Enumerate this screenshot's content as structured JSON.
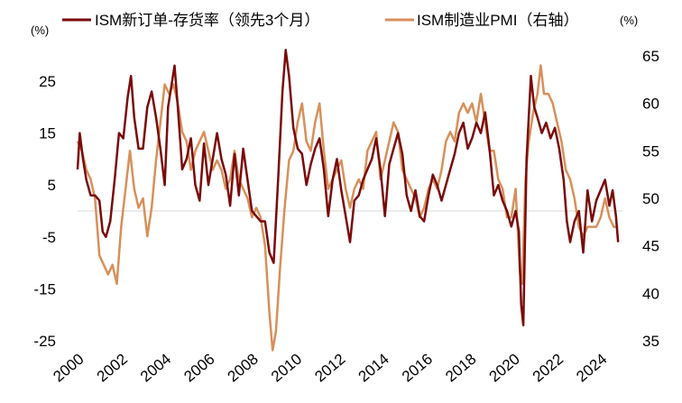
{
  "chart_data": {
    "type": "line",
    "left_unit": "(%)",
    "right_unit": "(%)",
    "y_left": {
      "ticks": [
        25,
        15,
        5,
        -5,
        -15,
        -25
      ],
      "tick_labels": [
        "25",
        "15",
        "5",
        "-5",
        "-15",
        "-25"
      ],
      "range": [
        -25,
        30
      ]
    },
    "y_right": {
      "ticks": [
        65,
        60,
        55,
        50,
        45,
        40,
        35
      ],
      "tick_labels": [
        "65",
        "60",
        "55",
        "50",
        "45",
        "40",
        "35"
      ],
      "range": [
        35,
        65
      ]
    },
    "x_ticks": [
      "2000",
      "2002",
      "2004",
      "2006",
      "2008",
      "2010",
      "2012",
      "2014",
      "2016",
      "2018",
      "2020",
      "2022",
      "2024"
    ],
    "x_range": [
      2000.0,
      2025.0
    ],
    "grid": false,
    "legend_position": "top",
    "series": [
      {
        "name": "ISM新订单-存货率（领先3个月）",
        "axis": "left",
        "color": "#7a0a0a",
        "points": [
          [
            2000.0,
            8
          ],
          [
            2000.1,
            15
          ],
          [
            2000.25,
            10
          ],
          [
            2000.4,
            6
          ],
          [
            2000.6,
            3
          ],
          [
            2000.8,
            3
          ],
          [
            2001.0,
            2
          ],
          [
            2001.15,
            -4
          ],
          [
            2001.3,
            -5
          ],
          [
            2001.5,
            -2
          ],
          [
            2001.7,
            6
          ],
          [
            2001.9,
            15
          ],
          [
            2002.1,
            14
          ],
          [
            2002.3,
            22
          ],
          [
            2002.45,
            26
          ],
          [
            2002.6,
            18
          ],
          [
            2002.8,
            12
          ],
          [
            2003.0,
            12
          ],
          [
            2003.2,
            20
          ],
          [
            2003.4,
            23
          ],
          [
            2003.6,
            18
          ],
          [
            2003.8,
            12
          ],
          [
            2004.0,
            5
          ],
          [
            2004.15,
            20
          ],
          [
            2004.3,
            24
          ],
          [
            2004.45,
            28
          ],
          [
            2004.6,
            20
          ],
          [
            2004.8,
            8
          ],
          [
            2005.0,
            10
          ],
          [
            2005.2,
            14
          ],
          [
            2005.4,
            5
          ],
          [
            2005.6,
            2
          ],
          [
            2005.8,
            13
          ],
          [
            2006.0,
            5
          ],
          [
            2006.2,
            10
          ],
          [
            2006.4,
            15
          ],
          [
            2006.6,
            10
          ],
          [
            2006.8,
            7
          ],
          [
            2007.0,
            1
          ],
          [
            2007.2,
            11
          ],
          [
            2007.4,
            3
          ],
          [
            2007.6,
            12
          ],
          [
            2007.8,
            6
          ],
          [
            2008.0,
            0
          ],
          [
            2008.2,
            -1
          ],
          [
            2008.4,
            -2
          ],
          [
            2008.6,
            -2
          ],
          [
            2008.8,
            -8
          ],
          [
            2009.0,
            -10
          ],
          [
            2009.2,
            6
          ],
          [
            2009.4,
            23
          ],
          [
            2009.55,
            31
          ],
          [
            2009.7,
            26
          ],
          [
            2009.9,
            16
          ],
          [
            2010.1,
            12
          ],
          [
            2010.3,
            11
          ],
          [
            2010.5,
            5
          ],
          [
            2010.7,
            9
          ],
          [
            2010.9,
            12
          ],
          [
            2011.1,
            14
          ],
          [
            2011.3,
            8
          ],
          [
            2011.5,
            -1
          ],
          [
            2011.7,
            6
          ],
          [
            2011.9,
            10
          ],
          [
            2012.1,
            4
          ],
          [
            2012.3,
            -1
          ],
          [
            2012.5,
            -6
          ],
          [
            2012.7,
            2
          ],
          [
            2012.9,
            3
          ],
          [
            2013.1,
            6
          ],
          [
            2013.3,
            8
          ],
          [
            2013.5,
            10
          ],
          [
            2013.7,
            14
          ],
          [
            2013.9,
            8
          ],
          [
            2014.1,
            -1
          ],
          [
            2014.3,
            9
          ],
          [
            2014.5,
            12
          ],
          [
            2014.7,
            15
          ],
          [
            2014.9,
            11
          ],
          [
            2015.1,
            3
          ],
          [
            2015.3,
            0
          ],
          [
            2015.5,
            4
          ],
          [
            2015.7,
            -1
          ],
          [
            2015.9,
            -2
          ],
          [
            2016.1,
            3
          ],
          [
            2016.3,
            7
          ],
          [
            2016.5,
            5
          ],
          [
            2016.7,
            2
          ],
          [
            2016.9,
            5
          ],
          [
            2017.1,
            8
          ],
          [
            2017.3,
            11
          ],
          [
            2017.5,
            15
          ],
          [
            2017.7,
            17
          ],
          [
            2017.9,
            12
          ],
          [
            2018.1,
            14
          ],
          [
            2018.3,
            17
          ],
          [
            2018.5,
            15
          ],
          [
            2018.7,
            19
          ],
          [
            2018.9,
            12
          ],
          [
            2019.1,
            3
          ],
          [
            2019.3,
            5
          ],
          [
            2019.5,
            2
          ],
          [
            2019.7,
            0
          ],
          [
            2019.9,
            -3
          ],
          [
            2020.1,
            0
          ],
          [
            2020.25,
            -4
          ],
          [
            2020.35,
            -18
          ],
          [
            2020.45,
            -22
          ],
          [
            2020.6,
            10
          ],
          [
            2020.8,
            26
          ],
          [
            2020.95,
            20
          ],
          [
            2021.1,
            18
          ],
          [
            2021.3,
            15
          ],
          [
            2021.5,
            17
          ],
          [
            2021.7,
            14
          ],
          [
            2021.9,
            16
          ],
          [
            2022.1,
            12
          ],
          [
            2022.3,
            6
          ],
          [
            2022.45,
            -2
          ],
          [
            2022.6,
            -6
          ],
          [
            2022.8,
            -2
          ],
          [
            2023.0,
            0
          ],
          [
            2023.2,
            -8
          ],
          [
            2023.4,
            4
          ],
          [
            2023.6,
            -2
          ],
          [
            2023.8,
            2
          ],
          [
            2024.0,
            4
          ],
          [
            2024.2,
            6
          ],
          [
            2024.4,
            1
          ],
          [
            2024.55,
            4
          ],
          [
            2024.7,
            -1
          ],
          [
            2024.8,
            -6
          ]
        ]
      },
      {
        "name": "ISM制造业PMI（右轴）",
        "axis": "right",
        "color": "#d7905a",
        "points": [
          [
            2000.0,
            56
          ],
          [
            2000.2,
            55
          ],
          [
            2000.4,
            53
          ],
          [
            2000.6,
            52
          ],
          [
            2000.8,
            50
          ],
          [
            2001.0,
            44
          ],
          [
            2001.2,
            43
          ],
          [
            2001.4,
            42
          ],
          [
            2001.6,
            43
          ],
          [
            2001.8,
            41
          ],
          [
            2002.0,
            47
          ],
          [
            2002.2,
            51
          ],
          [
            2002.4,
            55
          ],
          [
            2002.6,
            51
          ],
          [
            2002.8,
            49
          ],
          [
            2003.0,
            50
          ],
          [
            2003.2,
            46
          ],
          [
            2003.4,
            49
          ],
          [
            2003.6,
            54
          ],
          [
            2003.8,
            58
          ],
          [
            2004.0,
            62
          ],
          [
            2004.2,
            61
          ],
          [
            2004.4,
            62
          ],
          [
            2004.6,
            60
          ],
          [
            2004.8,
            57
          ],
          [
            2005.0,
            56
          ],
          [
            2005.2,
            53
          ],
          [
            2005.4,
            55
          ],
          [
            2005.6,
            56
          ],
          [
            2005.8,
            57
          ],
          [
            2006.0,
            55
          ],
          [
            2006.2,
            53
          ],
          [
            2006.4,
            54
          ],
          [
            2006.6,
            53
          ],
          [
            2006.8,
            51
          ],
          [
            2007.0,
            52
          ],
          [
            2007.2,
            55
          ],
          [
            2007.4,
            52
          ],
          [
            2007.6,
            51
          ],
          [
            2007.8,
            50
          ],
          [
            2008.0,
            48
          ],
          [
            2008.2,
            49
          ],
          [
            2008.4,
            48
          ],
          [
            2008.6,
            45
          ],
          [
            2008.8,
            38
          ],
          [
            2008.95,
            34
          ],
          [
            2009.1,
            36
          ],
          [
            2009.3,
            43
          ],
          [
            2009.5,
            49
          ],
          [
            2009.7,
            54
          ],
          [
            2009.9,
            55
          ],
          [
            2010.1,
            58
          ],
          [
            2010.3,
            60
          ],
          [
            2010.5,
            56
          ],
          [
            2010.7,
            55
          ],
          [
            2010.9,
            58
          ],
          [
            2011.1,
            60
          ],
          [
            2011.3,
            55
          ],
          [
            2011.5,
            51
          ],
          [
            2011.7,
            52
          ],
          [
            2011.9,
            53
          ],
          [
            2012.1,
            54
          ],
          [
            2012.3,
            51
          ],
          [
            2012.5,
            49
          ],
          [
            2012.7,
            51
          ],
          [
            2012.9,
            52
          ],
          [
            2013.1,
            51
          ],
          [
            2013.3,
            55
          ],
          [
            2013.5,
            56
          ],
          [
            2013.7,
            57
          ],
          [
            2013.9,
            52
          ],
          [
            2014.1,
            54
          ],
          [
            2014.3,
            56
          ],
          [
            2014.5,
            58
          ],
          [
            2014.7,
            57
          ],
          [
            2014.9,
            53
          ],
          [
            2015.1,
            52
          ],
          [
            2015.3,
            51
          ],
          [
            2015.5,
            50
          ],
          [
            2015.7,
            48
          ],
          [
            2015.9,
            49
          ],
          [
            2016.1,
            51
          ],
          [
            2016.3,
            52
          ],
          [
            2016.5,
            51
          ],
          [
            2016.7,
            53
          ],
          [
            2016.9,
            56
          ],
          [
            2017.1,
            57
          ],
          [
            2017.3,
            56
          ],
          [
            2017.5,
            59
          ],
          [
            2017.7,
            60
          ],
          [
            2017.9,
            59
          ],
          [
            2018.1,
            60
          ],
          [
            2018.3,
            58
          ],
          [
            2018.5,
            61
          ],
          [
            2018.7,
            58
          ],
          [
            2018.9,
            55
          ],
          [
            2019.1,
            55
          ],
          [
            2019.3,
            52
          ],
          [
            2019.5,
            51
          ],
          [
            2019.7,
            48
          ],
          [
            2019.9,
            48
          ],
          [
            2020.1,
            51
          ],
          [
            2020.3,
            42
          ],
          [
            2020.4,
            41
          ],
          [
            2020.55,
            52
          ],
          [
            2020.7,
            56
          ],
          [
            2020.9,
            59
          ],
          [
            2021.1,
            61
          ],
          [
            2021.25,
            64
          ],
          [
            2021.4,
            61
          ],
          [
            2021.6,
            61
          ],
          [
            2021.8,
            60
          ],
          [
            2022.0,
            58
          ],
          [
            2022.2,
            56
          ],
          [
            2022.4,
            53
          ],
          [
            2022.6,
            52
          ],
          [
            2022.8,
            50
          ],
          [
            2023.0,
            47
          ],
          [
            2023.2,
            46
          ],
          [
            2023.4,
            47
          ],
          [
            2023.6,
            47
          ],
          [
            2023.8,
            47
          ],
          [
            2024.0,
            48
          ],
          [
            2024.2,
            50
          ],
          [
            2024.4,
            48
          ],
          [
            2024.6,
            47
          ],
          [
            2024.8,
            47
          ]
        ]
      }
    ]
  }
}
